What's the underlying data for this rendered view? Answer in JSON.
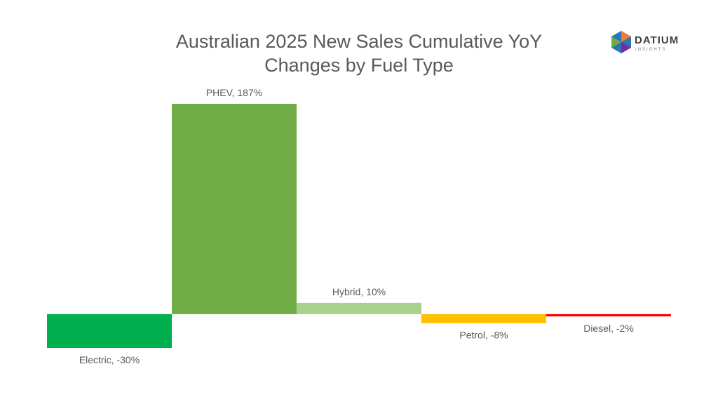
{
  "chart_data": {
    "type": "bar",
    "title": "Australian 2025 New Sales Cumulative YoY Changes by Fuel Type",
    "values": [
      -30,
      187,
      10,
      -8,
      -2
    ],
    "value_labels": [
      "Electric, -30%",
      "PHEV, 187%",
      "Hybrid, 10%",
      "Petrol, -8%",
      "Diesel, -2%"
    ],
    "colors": [
      "#00b050",
      "#70ad47",
      "#a9d18e",
      "#ffc000",
      "#ff0000"
    ]
  },
  "logo": {
    "name": "DATIUM",
    "tagline": "INSIGHTS"
  }
}
